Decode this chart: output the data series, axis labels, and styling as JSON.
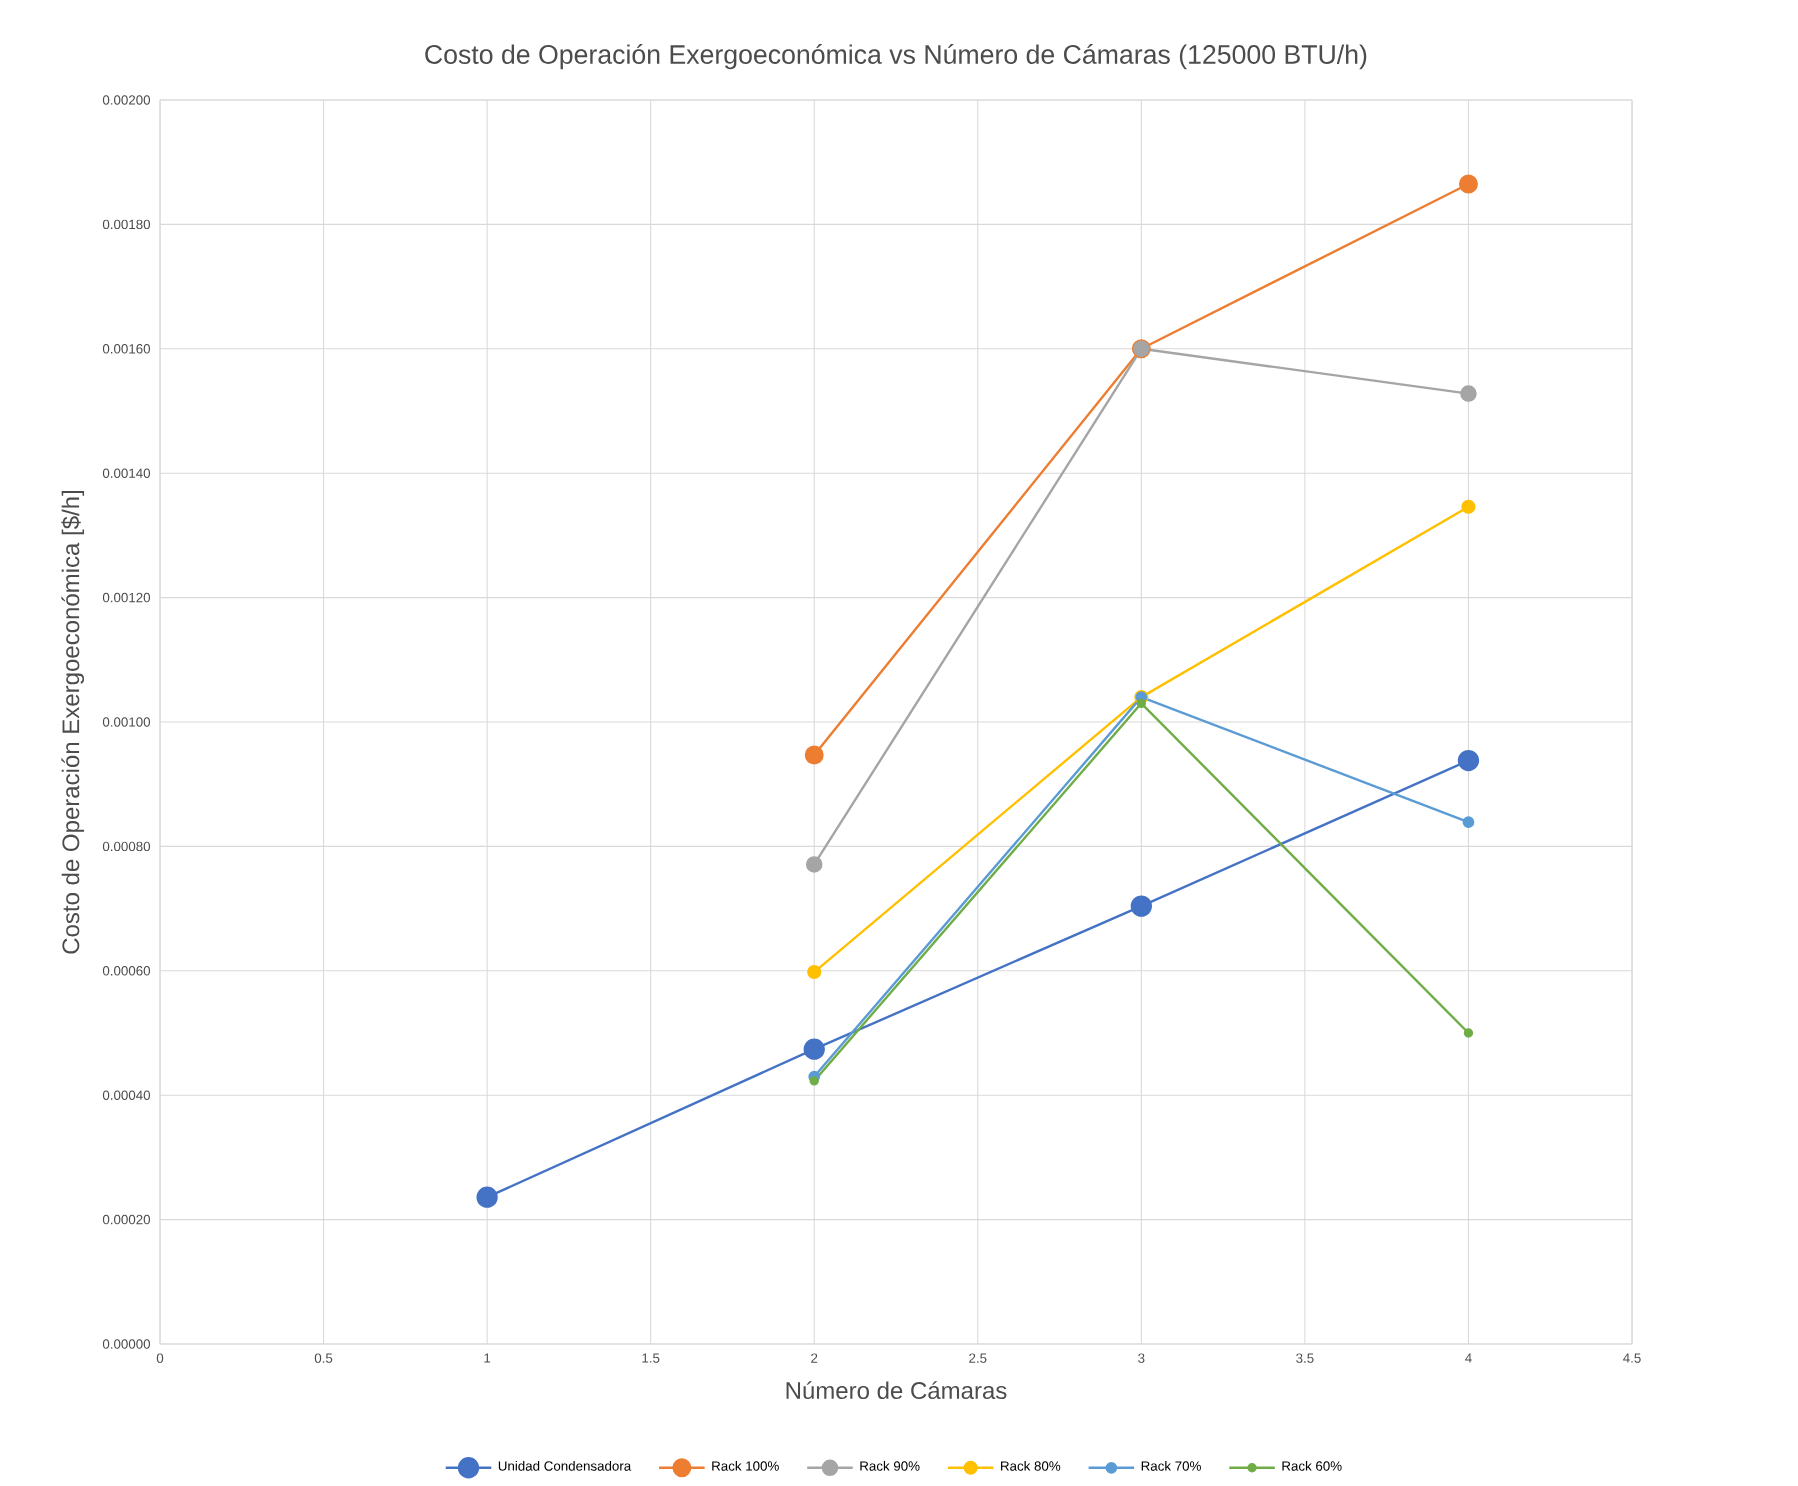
{
  "chart_data": {
    "type": "line",
    "title": "Costo de Operación Exergoeconómica vs Número de Cámaras (125000 BTU/h)",
    "xlabel": "Número de Cámaras",
    "ylabel": "Costo de Operación Exergoeconómica [$/h]",
    "xlim": [
      0,
      4.5
    ],
    "xticks": [
      0,
      0.5,
      1,
      1.5,
      2,
      2.5,
      3,
      3.5,
      4,
      4.5
    ],
    "ylim": [
      0,
      0.002
    ],
    "yticks": [
      {
        "value": 0,
        "label": "0.00000"
      },
      {
        "value": 0.0002,
        "label": "0.00020"
      },
      {
        "value": 0.0004,
        "label": "0.00040"
      },
      {
        "value": 0.0006,
        "label": "0.00060"
      },
      {
        "value": 0.0008,
        "label": "0.00080"
      },
      {
        "value": 0.001,
        "label": "0.00100"
      },
      {
        "value": 0.0012,
        "label": "0.00120"
      },
      {
        "value": 0.0014,
        "label": "0.00140"
      },
      {
        "value": 0.0016,
        "label": "0.00160"
      },
      {
        "value": 0.0018,
        "label": "0.00180"
      },
      {
        "value": 0.002,
        "label": "0.00200"
      }
    ],
    "grid": true,
    "legend": "bottom",
    "marker": "circle",
    "series": [
      {
        "name": "Unidad Condensadora",
        "color": "#4472c4",
        "x": [
          1,
          2,
          3,
          4
        ],
        "values": [
          0.000236,
          0.000474,
          0.000704,
          0.000938
        ]
      },
      {
        "name": "Rack 100%",
        "color": "#ed7d31",
        "x": [
          2,
          3,
          4
        ],
        "values": [
          0.000947,
          0.0016,
          0.001865
        ]
      },
      {
        "name": "Rack 90%",
        "color": "#a5a5a5",
        "x": [
          2,
          3,
          4
        ],
        "values": [
          0.000771,
          0.0016,
          0.001528
        ]
      },
      {
        "name": "Rack 80%",
        "color": "#ffc000",
        "x": [
          2,
          3,
          4
        ],
        "values": [
          0.000598,
          0.00104,
          0.001346
        ]
      },
      {
        "name": "Rack 70%",
        "color": "#5b9bd5",
        "x": [
          2,
          3,
          4
        ],
        "values": [
          0.00043,
          0.00104,
          0.000839
        ]
      },
      {
        "name": "Rack 60%",
        "color": "#70ad47",
        "x": [
          2,
          3,
          4
        ],
        "values": [
          0.000423,
          0.00103,
          0.0005
        ]
      }
    ]
  }
}
